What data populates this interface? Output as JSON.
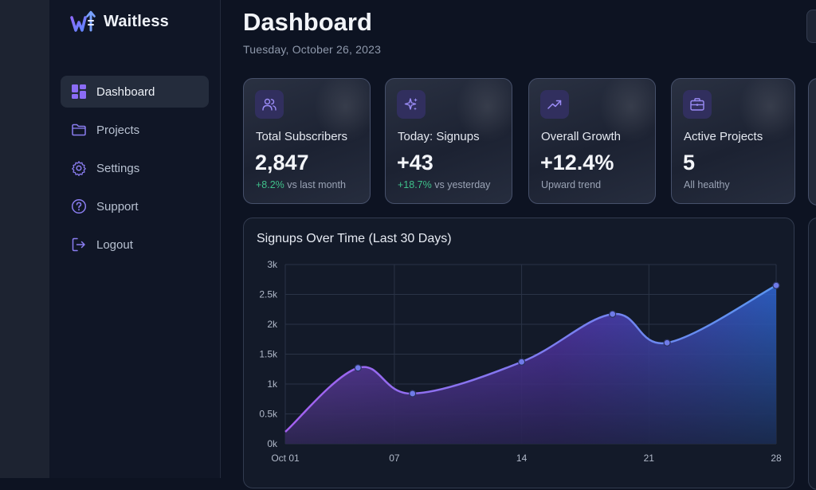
{
  "app": {
    "name": "Waitless"
  },
  "sidebar": {
    "items": [
      {
        "label": "Dashboard",
        "icon": "dashboard-icon",
        "active": true
      },
      {
        "label": "Projects",
        "icon": "folder-icon",
        "active": false
      },
      {
        "label": "Settings",
        "icon": "gear-icon",
        "active": false
      },
      {
        "label": "Support",
        "icon": "help-circle-icon",
        "active": false
      },
      {
        "label": "Logout",
        "icon": "logout-icon",
        "active": false
      }
    ]
  },
  "header": {
    "title": "Dashboard",
    "date": "Tuesday, October 26, 2023"
  },
  "stats": [
    {
      "icon": "users-icon",
      "label": "Total Subscribers",
      "value": "2,847",
      "delta": "+8.2%",
      "note": " vs last month"
    },
    {
      "icon": "sparkles-icon",
      "label": "Today: Signups",
      "value": "+43",
      "delta": "+18.7%",
      "note": " vs yesterday"
    },
    {
      "icon": "trending-up-icon",
      "label": "Overall Growth",
      "value": "+12.4%",
      "delta": "",
      "note": "Upward trend"
    },
    {
      "icon": "briefcase-icon",
      "label": "Active Projects",
      "value": "5",
      "delta": "",
      "note": "All healthy"
    }
  ],
  "colors": {
    "accent": "#7c5cf0",
    "positive": "#3fc08a",
    "line": "#7b7fe8"
  },
  "chart_data": {
    "type": "area",
    "title": "Signups Over Time (Last 30 Days)",
    "x_tick_labels": [
      "Oct 01",
      "07",
      "14",
      "21",
      "28"
    ],
    "y_tick_labels": [
      "0k",
      "0.5k",
      "1k",
      "1.5k",
      "2k",
      "2.5k",
      "3k"
    ],
    "ylim": [
      0,
      3000
    ],
    "xlim": [
      1,
      28
    ],
    "grid": true,
    "series": [
      {
        "x": [
          1,
          5,
          8,
          14,
          19,
          22,
          28
        ],
        "values": [
          200,
          1270,
          840,
          1370,
          2170,
          1690,
          2650
        ]
      }
    ]
  }
}
